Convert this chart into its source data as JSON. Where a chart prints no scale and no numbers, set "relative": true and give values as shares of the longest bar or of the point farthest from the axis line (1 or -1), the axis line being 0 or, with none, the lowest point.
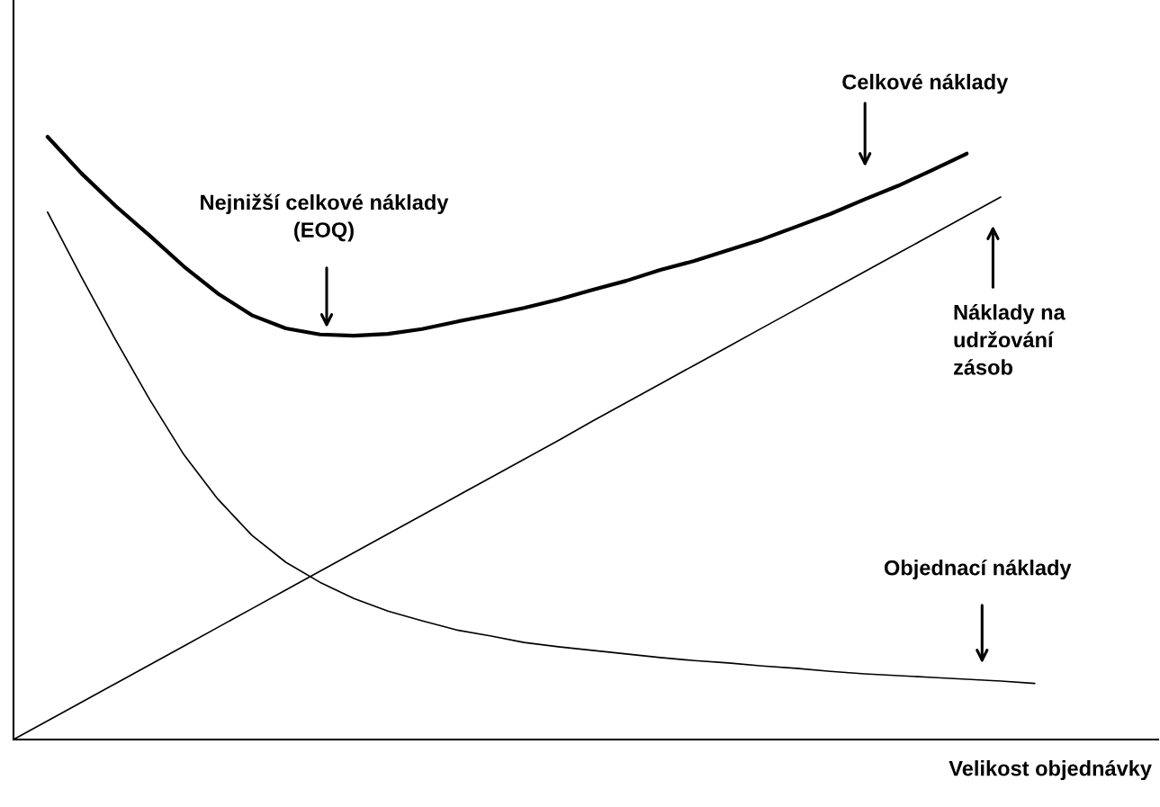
{
  "chart_data": {
    "type": "line",
    "relative": true,
    "xlabel": "Velikost objednávky",
    "legend": false,
    "grid": false,
    "marker": "none",
    "categories": [
      null,
      null,
      null,
      null,
      null,
      null,
      null,
      null,
      null,
      null,
      null,
      null,
      null,
      null,
      null,
      null,
      null,
      null,
      null,
      null,
      null,
      null,
      null,
      null,
      null,
      null,
      null,
      null,
      null,
      null,
      null
    ],
    "series": [
      {
        "color": "#000000",
        "values": [
          null,
          1.0,
          0.939,
          0.885,
          0.836,
          0.785,
          0.74,
          0.704,
          0.682,
          0.672,
          0.67,
          0.673,
          0.681,
          0.693,
          0.704,
          0.716,
          0.73,
          0.746,
          0.761,
          0.779,
          0.794,
          0.812,
          0.83,
          0.851,
          0.872,
          0.896,
          0.919,
          0.945,
          0.972,
          null,
          null
        ]
      },
      {
        "color": "#000000",
        "values": [
          0,
          0.031,
          0.062,
          0.093,
          0.124,
          0.155,
          0.186,
          0.217,
          0.248,
          0.279,
          0.31,
          0.341,
          0.372,
          0.403,
          0.434,
          0.465,
          0.496,
          0.528,
          0.559,
          0.59,
          0.621,
          0.652,
          0.683,
          0.714,
          0.745,
          0.776,
          0.807,
          0.838,
          0.869,
          0.9,
          null
        ]
      },
      {
        "color": "#000000",
        "values": [
          null,
          0.875,
          0.767,
          0.663,
          0.564,
          0.473,
          0.399,
          0.339,
          0.294,
          0.261,
          0.234,
          0.213,
          0.197,
          0.182,
          0.172,
          0.161,
          0.154,
          0.148,
          0.142,
          0.136,
          0.131,
          0.127,
          0.122,
          0.118,
          0.113,
          0.109,
          0.106,
          0.103,
          0.1,
          0.097,
          0.093
        ]
      }
    ],
    "annotations": [
      "Celkové náklady",
      "Nejnižší celkové náklady\n(EOQ)",
      "Náklady na\nudržování\nzásob",
      "Objednací náklady"
    ]
  }
}
